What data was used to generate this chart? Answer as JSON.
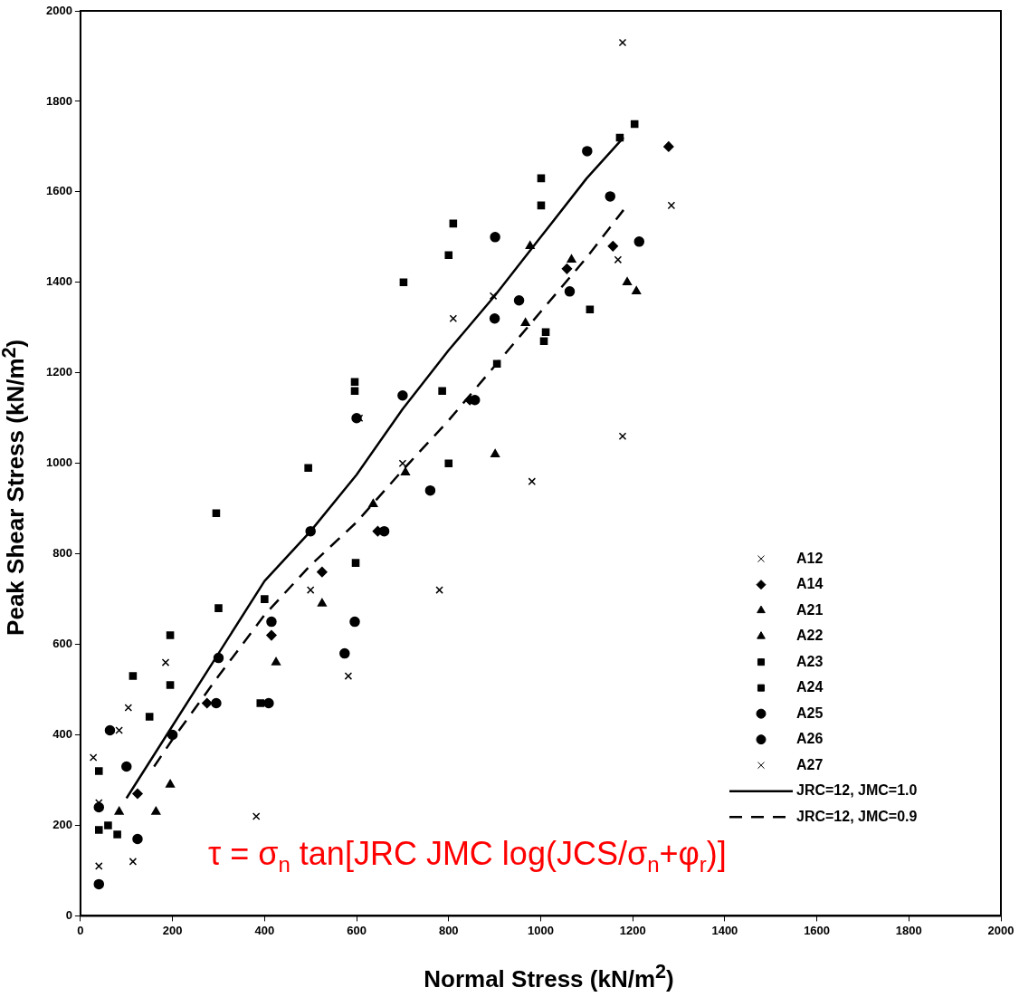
{
  "chart_data": {
    "type": "scatter",
    "xlabel": "Normal Stress (kN/m$^{2}$)",
    "ylabel": "Peak Shear Stress (kN/m$^{2}$)",
    "xlim": [
      0,
      2000
    ],
    "xticks": [
      0,
      200,
      400,
      600,
      800,
      1000,
      1200,
      1400,
      1600,
      1800,
      2000
    ],
    "ylim": [
      0,
      2000
    ],
    "yticks": [
      0,
      200,
      400,
      600,
      800,
      1000,
      1200,
      1400,
      1600,
      1800,
      2000
    ],
    "grid": false,
    "legend": "bottom right",
    "annotations": [
      "τ = σ$_{n}$ tan[JRC JMC log(JCS/σ$_{n}$+φ$_{r}$)]"
    ],
    "series": [
      {
        "name": "A12",
        "color": "#000000",
        "marker": "cross",
        "x": [
          1178,
          1284,
          1168,
          897,
          810,
          606,
          185,
          84,
          40,
          40,
          500,
          700
        ],
        "values": [
          1930,
          1570,
          1450,
          1370,
          1320,
          1100,
          560,
          410,
          250,
          110,
          720,
          1000
        ]
      },
      {
        "name": "A14",
        "color": "#000000",
        "marker": "diamond",
        "x": [
          1278,
          1157,
          1057,
          846,
          525,
          415,
          275,
          124,
          646
        ],
        "values": [
          1700,
          1480,
          1430,
          1140,
          760,
          620,
          470,
          270,
          850
        ]
      },
      {
        "name": "A21",
        "color": "#000000",
        "marker": "triangle",
        "x": [
          1208,
          1188,
          1067,
          977,
          901,
          706,
          636,
          425,
          164
        ],
        "values": [
          1380,
          1400,
          1450,
          1480,
          1020,
          980,
          910,
          560,
          230
        ]
      },
      {
        "name": "A22",
        "color": "#000000",
        "marker": "triangle",
        "x": [
          525,
          195,
          84,
          967
        ],
        "values": [
          690,
          290,
          230,
          1310
        ]
      },
      {
        "name": "A23",
        "color": "#000000",
        "marker": "square",
        "x": [
          1172,
          1107,
          1011,
          1007,
          905,
          786,
          800,
          598,
          300,
          391,
          150,
          60,
          80,
          400
        ],
        "values": [
          1720,
          1340,
          1290,
          1270,
          1220,
          1160,
          1000,
          780,
          680,
          470,
          440,
          200,
          180,
          700
        ]
      },
      {
        "name": "A24",
        "color": "#000000",
        "marker": "square",
        "x": [
          114,
          195,
          195,
          295,
          495,
          596,
          596,
          702,
          800,
          810,
          1001,
          1001,
          1204,
          40,
          40
        ],
        "values": [
          530,
          620,
          510,
          890,
          990,
          1180,
          1160,
          1400,
          1460,
          1530,
          1630,
          1570,
          1750,
          320,
          190
        ]
      },
      {
        "name": "A25",
        "color": "#000000",
        "marker": "circle",
        "x": [
          901,
          1101,
          1151,
          953,
          857,
          760,
          660,
          596,
          574,
          409,
          295,
          124,
          1063,
          415
        ],
        "values": [
          1500,
          1690,
          1590,
          1360,
          1140,
          940,
          850,
          650,
          580,
          470,
          470,
          170,
          1380,
          650
        ]
      },
      {
        "name": "A26",
        "color": "#000000",
        "marker": "circle",
        "x": [
          1214,
          900,
          700,
          600,
          500,
          300,
          200,
          100,
          64,
          40,
          40
        ],
        "values": [
          1490,
          1320,
          1150,
          1100,
          850,
          570,
          400,
          330,
          410,
          240,
          70
        ]
      },
      {
        "name": "A27",
        "color": "#000000",
        "marker": "cross",
        "x": [
          1178,
          981,
          780,
          582,
          382,
          114,
          104,
          28
        ],
        "values": [
          1060,
          960,
          720,
          530,
          220,
          120,
          460,
          350
        ]
      },
      {
        "name": "JRC=12, JMC=1.0",
        "type": "line",
        "color": "#000000",
        "marker": "none",
        "line_style": "solid",
        "x": [
          100,
          200,
          300,
          400,
          500,
          600,
          700,
          800,
          900,
          1000,
          1100,
          1180
        ],
        "values": [
          260,
          420,
          580,
          740,
          850,
          975,
          1120,
          1250,
          1370,
          1500,
          1630,
          1720
        ]
      },
      {
        "name": "JRC=12, JMC=0.9",
        "type": "line",
        "color": "#000000",
        "marker": "none",
        "line_style": "dashed",
        "x": [
          160,
          200,
          300,
          400,
          500,
          600,
          700,
          800,
          900,
          1000,
          1100,
          1180
        ],
        "values": [
          330,
          390,
          530,
          665,
          775,
          870,
          985,
          1095,
          1215,
          1335,
          1455,
          1560
        ]
      }
    ]
  }
}
